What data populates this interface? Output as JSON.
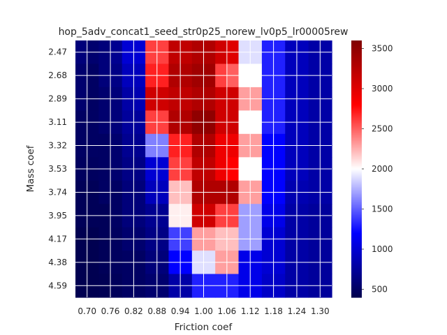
{
  "chart_data": {
    "type": "heatmap",
    "title": "hop_5adv_concat1_seed_str0p25_norew_lv0p5_lr00005rew",
    "xlabel": "Friction coef",
    "ylabel": "Mass coef",
    "x_tick_labels": [
      "0.70",
      "0.76",
      "0.82",
      "0.88",
      "0.94",
      "1.00",
      "1.06",
      "1.12",
      "1.18",
      "1.24",
      "1.30"
    ],
    "y_tick_labels": [
      "2.47",
      "2.68",
      "2.89",
      "3.11",
      "3.32",
      "3.53",
      "3.74",
      "3.95",
      "4.17",
      "4.38",
      "4.59"
    ],
    "n_cols": 22,
    "n_rows": 22,
    "colormap": "seismic",
    "vmin": 400,
    "vmax": 3600,
    "colorbar_ticks": [
      500,
      1000,
      1500,
      2000,
      2500,
      3000,
      3500
    ],
    "grid": true,
    "values": [
      [
        600,
        550,
        600,
        700,
        1000,
        1000,
        2600,
        2600,
        3200,
        3200,
        3300,
        3300,
        3100,
        3000,
        1900,
        1900,
        1300,
        1300,
        900,
        900,
        800,
        800
      ],
      [
        600,
        550,
        600,
        700,
        1000,
        1000,
        2600,
        2600,
        3200,
        3200,
        3300,
        3300,
        3100,
        3000,
        1900,
        1900,
        1300,
        1300,
        900,
        900,
        800,
        800
      ],
      [
        550,
        500,
        600,
        650,
        900,
        900,
        2700,
        2700,
        3300,
        3300,
        3400,
        3400,
        2600,
        2500,
        2000,
        2000,
        1300,
        1300,
        900,
        900,
        800,
        800
      ],
      [
        550,
        500,
        600,
        650,
        900,
        900,
        2700,
        2700,
        3300,
        3300,
        3400,
        3400,
        2600,
        2500,
        2000,
        2000,
        1300,
        1300,
        900,
        900,
        800,
        800
      ],
      [
        550,
        500,
        550,
        600,
        800,
        850,
        3100,
        3100,
        3200,
        3200,
        3300,
        3300,
        3100,
        3100,
        2300,
        2300,
        1300,
        1300,
        900,
        900,
        800,
        800
      ],
      [
        550,
        500,
        550,
        600,
        800,
        850,
        3100,
        3100,
        3200,
        3200,
        3300,
        3300,
        3100,
        3100,
        2300,
        2300,
        1300,
        1300,
        900,
        900,
        800,
        800
      ],
      [
        500,
        500,
        550,
        600,
        750,
        750,
        2600,
        2600,
        3300,
        3300,
        3500,
        3500,
        3100,
        3100,
        2000,
        2000,
        1300,
        1300,
        900,
        900,
        800,
        800
      ],
      [
        500,
        500,
        550,
        600,
        750,
        750,
        2600,
        2600,
        3300,
        3300,
        3500,
        3500,
        3100,
        3100,
        2000,
        2000,
        1300,
        1300,
        900,
        900,
        800,
        800
      ],
      [
        500,
        500,
        500,
        550,
        700,
        700,
        1600,
        1600,
        2700,
        2700,
        3300,
        3300,
        2900,
        2900,
        2300,
        2300,
        1200,
        1200,
        900,
        900,
        800,
        800
      ],
      [
        500,
        500,
        500,
        550,
        700,
        700,
        1600,
        1600,
        2700,
        2700,
        3300,
        3300,
        2900,
        2900,
        2300,
        2300,
        1200,
        1200,
        900,
        900,
        800,
        800
      ],
      [
        480,
        480,
        500,
        550,
        650,
        650,
        1000,
        1000,
        2600,
        2600,
        3200,
        3200,
        2900,
        2800,
        2000,
        2000,
        1200,
        1200,
        900,
        900,
        800,
        800
      ],
      [
        480,
        480,
        500,
        550,
        650,
        650,
        1000,
        1000,
        2600,
        2600,
        3200,
        3200,
        2900,
        2800,
        2000,
        2000,
        1200,
        1200,
        900,
        900,
        800,
        800
      ],
      [
        450,
        450,
        500,
        500,
        600,
        600,
        900,
        900,
        2200,
        2200,
        3300,
        3300,
        3300,
        3300,
        2300,
        2300,
        1200,
        1200,
        850,
        850,
        800,
        800
      ],
      [
        450,
        450,
        500,
        500,
        600,
        600,
        900,
        900,
        2200,
        2200,
        3300,
        3300,
        3300,
        3300,
        2300,
        2300,
        1200,
        1200,
        850,
        850,
        800,
        800
      ],
      [
        450,
        450,
        450,
        500,
        600,
        600,
        700,
        700,
        2050,
        2050,
        3100,
        3100,
        2600,
        2600,
        1700,
        1700,
        1100,
        1100,
        800,
        800,
        750,
        750
      ],
      [
        450,
        450,
        450,
        500,
        600,
        600,
        700,
        700,
        2050,
        2050,
        3100,
        3100,
        2600,
        2600,
        1700,
        1700,
        1100,
        1100,
        800,
        800,
        750,
        750
      ],
      [
        420,
        420,
        450,
        480,
        550,
        550,
        650,
        650,
        1400,
        1400,
        2300,
        2300,
        2200,
        2200,
        1700,
        1700,
        1000,
        1000,
        800,
        800,
        750,
        750
      ],
      [
        420,
        420,
        450,
        480,
        550,
        550,
        650,
        650,
        1400,
        1400,
        2300,
        2300,
        2200,
        2200,
        1700,
        1700,
        1000,
        1000,
        800,
        800,
        750,
        750
      ],
      [
        420,
        420,
        450,
        480,
        500,
        500,
        600,
        600,
        1200,
        1200,
        1900,
        1900,
        2300,
        2300,
        1100,
        1100,
        1000,
        1000,
        800,
        800,
        750,
        750
      ],
      [
        420,
        420,
        450,
        480,
        500,
        500,
        600,
        600,
        1200,
        1200,
        1900,
        1900,
        2300,
        2300,
        1100,
        1100,
        1000,
        1000,
        800,
        800,
        750,
        750
      ],
      [
        420,
        420,
        430,
        460,
        500,
        500,
        550,
        550,
        800,
        800,
        1300,
        1300,
        1300,
        1300,
        1100,
        1100,
        950,
        950,
        800,
        800,
        750,
        750
      ],
      [
        420,
        420,
        430,
        460,
        500,
        500,
        550,
        550,
        800,
        800,
        1300,
        1300,
        1300,
        1300,
        1100,
        1100,
        950,
        950,
        800,
        800,
        750,
        750
      ]
    ]
  }
}
